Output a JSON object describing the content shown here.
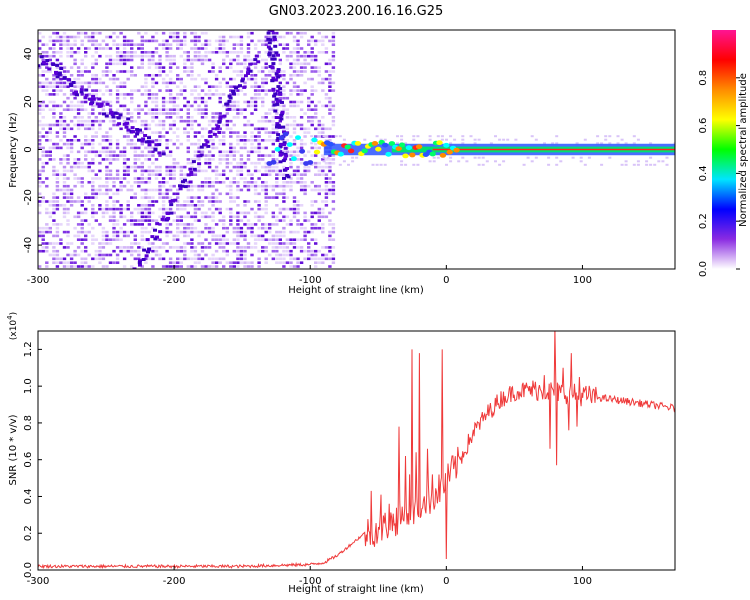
{
  "title": "GN03.2023.200.16.16.G25",
  "chart_data": [
    {
      "type": "heatmap",
      "xlabel": "Height of straight line (km)",
      "ylabel": "Frequency (Hz)",
      "xlim": [
        -300,
        168
      ],
      "ylim": [
        -50,
        50
      ],
      "xticks": [
        -300,
        -200,
        -100,
        0,
        100
      ],
      "yticks": [
        -40,
        -20,
        0,
        20,
        40
      ],
      "colorbar": {
        "label": "Normalized spectral amplitude",
        "range": [
          0,
          1
        ],
        "ticks": [
          "0.0",
          "0.2",
          "0.4",
          "0.6",
          "0.8"
        ],
        "colors": [
          "#ffffff",
          "#8a2be2",
          "#0000ff",
          "#00e5ff",
          "#00ff00",
          "#ffff00",
          "#ff8c00",
          "#ff0000",
          "#ff1493"
        ]
      },
      "features": {
        "noise_region_x": [
          -300,
          -82
        ],
        "signal_line_freq": 0,
        "signal_line_x": [
          -90,
          168
        ],
        "arcs": [
          {
            "x": [
              -300,
              -210
            ],
            "y": [
              38,
              0
            ]
          },
          {
            "x": [
              -230,
              -140
            ],
            "y": [
              -50,
              40
            ]
          },
          {
            "x": [
              -130,
              -120
            ],
            "y": [
              50,
              -10
            ]
          }
        ]
      }
    },
    {
      "type": "line",
      "xlabel": "Height of straight line (km)",
      "ylabel": "SNR (10 * v/v)",
      "scale_label": "(x10^4)",
      "xlim": [
        -300,
        168
      ],
      "ylim": [
        0,
        1.3
      ],
      "xticks": [
        -300,
        -200,
        -100,
        0,
        100
      ],
      "yticks": [
        "0.0",
        "0.2",
        "0.4",
        "0.6",
        "0.8",
        "1.0",
        "1.2"
      ],
      "color": "#ef3a3a",
      "series": [
        {
          "x": [
            -300,
            -250,
            -200,
            -150,
            -100,
            -90,
            -80,
            -70,
            -60,
            -50,
            -40,
            -30,
            -20,
            -10,
            0,
            10,
            20,
            30,
            40,
            50,
            60,
            70,
            80,
            90,
            100,
            120,
            140,
            168
          ],
          "y": [
            0.02,
            0.02,
            0.02,
            0.02,
            0.03,
            0.04,
            0.08,
            0.14,
            0.2,
            0.22,
            0.26,
            0.3,
            0.34,
            0.4,
            0.48,
            0.6,
            0.75,
            0.85,
            0.93,
            0.97,
            0.98,
            0.98,
            0.97,
            0.96,
            0.95,
            0.93,
            0.91,
            0.88
          ]
        }
      ],
      "spikes": [
        {
          "x": -55,
          "y": 0.43
        },
        {
          "x": -48,
          "y": 0.41
        },
        {
          "x": -42,
          "y": 0.36
        },
        {
          "x": -35,
          "y": 0.78
        },
        {
          "x": -30,
          "y": 0.62
        },
        {
          "x": -27,
          "y": 0.52
        },
        {
          "x": -25,
          "y": 1.2
        },
        {
          "x": -22,
          "y": 0.64
        },
        {
          "x": -20,
          "y": 1.18
        },
        {
          "x": -17,
          "y": 0.38
        },
        {
          "x": -14,
          "y": 0.66
        },
        {
          "x": -10,
          "y": 0.52
        },
        {
          "x": -3,
          "y": 1.2
        },
        {
          "x": 0,
          "y": 0.06
        },
        {
          "x": 4,
          "y": 0.62
        },
        {
          "x": 72,
          "y": 1.06
        },
        {
          "x": 76,
          "y": 0.66
        },
        {
          "x": 80,
          "y": 1.32
        },
        {
          "x": 81,
          "y": 0.57
        },
        {
          "x": 86,
          "y": 1.1
        },
        {
          "x": 90,
          "y": 0.76
        },
        {
          "x": 92,
          "y": 1.18
        },
        {
          "x": 96,
          "y": 0.78
        },
        {
          "x": 98,
          "y": 1.05
        }
      ]
    }
  ]
}
